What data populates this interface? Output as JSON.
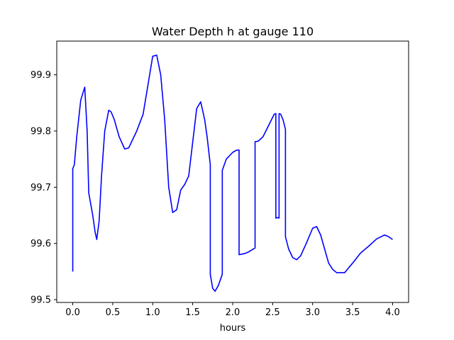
{
  "chart_data": {
    "type": "line",
    "title": "Water Depth h at gauge 110",
    "xlabel": "hours",
    "ylabel": "",
    "xlim": [
      -0.2,
      4.2
    ],
    "ylim": [
      99.495,
      99.96
    ],
    "xticks": [
      0.0,
      0.5,
      1.0,
      1.5,
      2.0,
      2.5,
      3.0,
      3.5,
      4.0
    ],
    "xtick_labels": [
      "0.0",
      "0.5",
      "1.0",
      "1.5",
      "2.0",
      "2.5",
      "3.0",
      "3.5",
      "4.0"
    ],
    "yticks": [
      99.5,
      99.6,
      99.7,
      99.8,
      99.9
    ],
    "ytick_labels": [
      "99.5",
      "99.6",
      "99.7",
      "99.8",
      "99.9"
    ],
    "grid": false,
    "series": [
      {
        "color": "#0000ff",
        "x": [
          0.0,
          0.0,
          0.02,
          0.05,
          0.1,
          0.15,
          0.18,
          0.2,
          0.25,
          0.28,
          0.3,
          0.33,
          0.36,
          0.4,
          0.45,
          0.48,
          0.52,
          0.58,
          0.65,
          0.7,
          0.75,
          0.8,
          0.88,
          0.95,
          1.0,
          1.05,
          1.1,
          1.15,
          1.2,
          1.25,
          1.3,
          1.35,
          1.4,
          1.45,
          1.5,
          1.55,
          1.6,
          1.65,
          1.68,
          1.72,
          1.72,
          1.75,
          1.78,
          1.82,
          1.87,
          1.87,
          1.92,
          2.0,
          2.05,
          2.08,
          2.08,
          2.15,
          2.2,
          2.28,
          2.28,
          2.32,
          2.38,
          2.45,
          2.52,
          2.54,
          2.54,
          2.56,
          2.58,
          2.58,
          2.6,
          2.63,
          2.66,
          2.66,
          2.7,
          2.75,
          2.8,
          2.85,
          2.92,
          3.0,
          3.05,
          3.1,
          3.15,
          3.2,
          3.25,
          3.3,
          3.4,
          3.5,
          3.6,
          3.7,
          3.8,
          3.9,
          3.95,
          4.0
        ],
        "y": [
          99.55,
          99.733,
          99.74,
          99.79,
          99.855,
          99.878,
          99.8,
          99.69,
          99.65,
          99.62,
          99.607,
          99.64,
          99.72,
          99.8,
          99.837,
          99.834,
          99.82,
          99.79,
          99.768,
          99.77,
          99.785,
          99.8,
          99.83,
          99.89,
          99.933,
          99.935,
          99.9,
          99.82,
          99.7,
          99.655,
          99.66,
          99.695,
          99.705,
          99.72,
          99.78,
          99.84,
          99.852,
          99.82,
          99.79,
          99.74,
          99.545,
          99.52,
          99.515,
          99.525,
          99.545,
          99.73,
          99.75,
          99.762,
          99.766,
          99.766,
          99.58,
          99.582,
          99.585,
          99.592,
          99.781,
          99.782,
          99.79,
          99.81,
          99.83,
          99.831,
          99.645,
          99.646,
          99.645,
          99.831,
          99.83,
          99.82,
          99.803,
          99.612,
          99.59,
          99.575,
          99.571,
          99.578,
          99.6,
          99.627,
          99.63,
          99.615,
          99.59,
          99.565,
          99.554,
          99.548,
          99.548,
          99.565,
          99.583,
          99.595,
          99.608,
          99.615,
          99.612,
          99.607
        ]
      }
    ]
  }
}
